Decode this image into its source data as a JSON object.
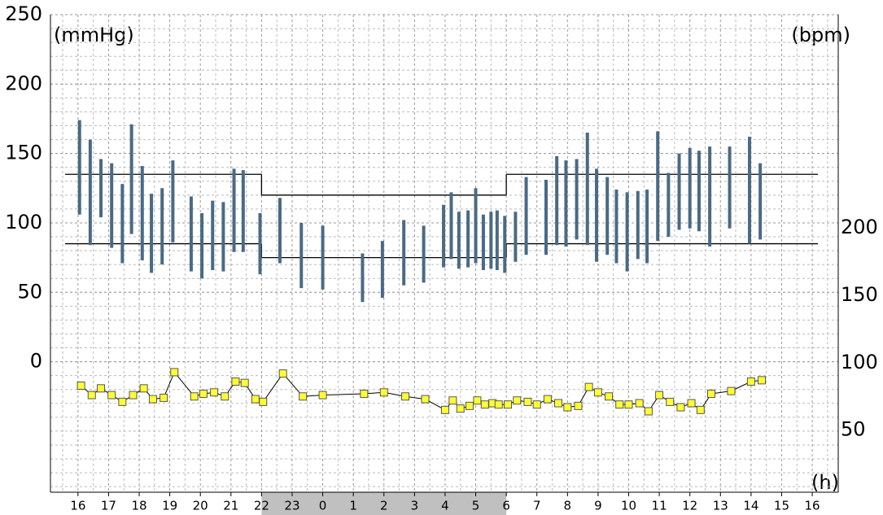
{
  "chart_data": {
    "type": "range-bar-line",
    "y_label": "(mmHg)",
    "y2_label": "(bpm)",
    "x_label": "(h)",
    "xlim": [
      -0.9,
      24.85
    ],
    "xticks": [
      {
        "value": 0,
        "label": "16"
      },
      {
        "value": 1,
        "label": "17"
      },
      {
        "value": 2,
        "label": "18"
      },
      {
        "value": 3,
        "label": "19"
      },
      {
        "value": 4,
        "label": "20"
      },
      {
        "value": 5,
        "label": "21"
      },
      {
        "value": 6,
        "label": "22"
      },
      {
        "value": 7,
        "label": "23"
      },
      {
        "value": 8,
        "label": "0"
      },
      {
        "value": 9,
        "label": "1"
      },
      {
        "value": 10,
        "label": "2"
      },
      {
        "value": 11,
        "label": "3"
      },
      {
        "value": 12,
        "label": "4"
      },
      {
        "value": 13,
        "label": "5"
      },
      {
        "value": 14,
        "label": "6"
      },
      {
        "value": 15,
        "label": "7"
      },
      {
        "value": 16,
        "label": "8"
      },
      {
        "value": 17,
        "label": "9"
      },
      {
        "value": 18,
        "label": "10"
      },
      {
        "value": 19,
        "label": "11"
      },
      {
        "value": 20,
        "label": "12"
      },
      {
        "value": 21,
        "label": "13"
      },
      {
        "value": 22,
        "label": "14"
      },
      {
        "value": 23,
        "label": "15"
      },
      {
        "value": 24,
        "label": "16"
      }
    ],
    "ylim": [
      -94,
      250
    ],
    "yticks": [
      0,
      50,
      100,
      150,
      200,
      250
    ],
    "y2lim": [
      4,
      358
    ],
    "y2ticks": [
      50,
      100,
      150,
      200
    ],
    "grid": true,
    "night": [
      6,
      14
    ],
    "day_limits": [
      135,
      85
    ],
    "night_limits": [
      120,
      75
    ],
    "bp": {
      "color": "#4a6a85",
      "x": [
        0.05,
        0.4,
        0.75,
        1.1,
        1.45,
        1.75,
        2.1,
        2.4,
        2.75,
        3.1,
        3.7,
        4.05,
        4.4,
        4.75,
        5.1,
        5.4,
        5.95,
        6.6,
        7.3,
        8.0,
        9.3,
        9.95,
        10.65,
        11.3,
        11.95,
        12.2,
        12.45,
        12.75,
        13.0,
        13.25,
        13.5,
        13.7,
        13.95,
        14.3,
        14.65,
        15.3,
        15.65,
        15.95,
        16.3,
        16.65,
        16.95,
        17.3,
        17.6,
        17.95,
        18.3,
        18.6,
        18.95,
        19.3,
        19.65,
        20.0,
        20.3,
        20.65,
        21.3,
        21.95,
        22.3
      ],
      "systolic": [
        174,
        160,
        146,
        143,
        128,
        171,
        141,
        121,
        125,
        145,
        119,
        107,
        116,
        115,
        139,
        138,
        107,
        118,
        100,
        98,
        78,
        87,
        102,
        98,
        113,
        122,
        108,
        109,
        125,
        106,
        108,
        109,
        105,
        108,
        133,
        131,
        148,
        145,
        146,
        165,
        139,
        133,
        124,
        122,
        123,
        124,
        166,
        136,
        150,
        154,
        152,
        155,
        155,
        162,
        143
      ],
      "diastolic": [
        106,
        84,
        104,
        82,
        71,
        92,
        73,
        64,
        70,
        86,
        65,
        60,
        66,
        65,
        79,
        79,
        63,
        71,
        53,
        52,
        43,
        46,
        55,
        57,
        68,
        74,
        67,
        68,
        71,
        66,
        67,
        66,
        64,
        72,
        77,
        77,
        84,
        83,
        88,
        84,
        72,
        77,
        71,
        65,
        74,
        71,
        87,
        90,
        95,
        96,
        94,
        83,
        96,
        85,
        88
      ]
    },
    "hr": {
      "axis": "y2",
      "color": "#000000",
      "marker_color": "#ffff33",
      "x": [
        0.1,
        0.45,
        0.75,
        1.1,
        1.45,
        1.8,
        2.15,
        2.45,
        2.8,
        3.15,
        3.8,
        4.1,
        4.45,
        4.8,
        5.15,
        5.45,
        5.8,
        6.05,
        6.7,
        7.35,
        8.0,
        9.35,
        10.0,
        10.7,
        11.35,
        12.0,
        12.25,
        12.5,
        12.8,
        13.05,
        13.3,
        13.55,
        13.75,
        14.05,
        14.35,
        14.7,
        15.0,
        15.35,
        15.7,
        16.0,
        16.35,
        16.7,
        17.0,
        17.35,
        17.7,
        18.0,
        18.35,
        18.65,
        19.0,
        19.35,
        19.7,
        20.05,
        20.35,
        20.7,
        21.35,
        22.0,
        22.35
      ],
      "values": [
        83,
        76,
        81,
        76,
        71,
        76,
        81,
        73,
        74,
        93,
        75,
        77,
        78,
        75,
        86,
        85,
        73,
        71,
        92,
        75,
        76,
        77,
        78,
        75,
        73,
        65,
        72,
        66,
        68,
        72,
        69,
        70,
        69,
        69,
        72,
        71,
        69,
        73,
        70,
        67,
        68,
        82,
        78,
        75,
        69,
        69,
        70,
        64,
        76,
        71,
        67,
        70,
        65,
        77,
        79,
        86,
        87
      ]
    }
  }
}
